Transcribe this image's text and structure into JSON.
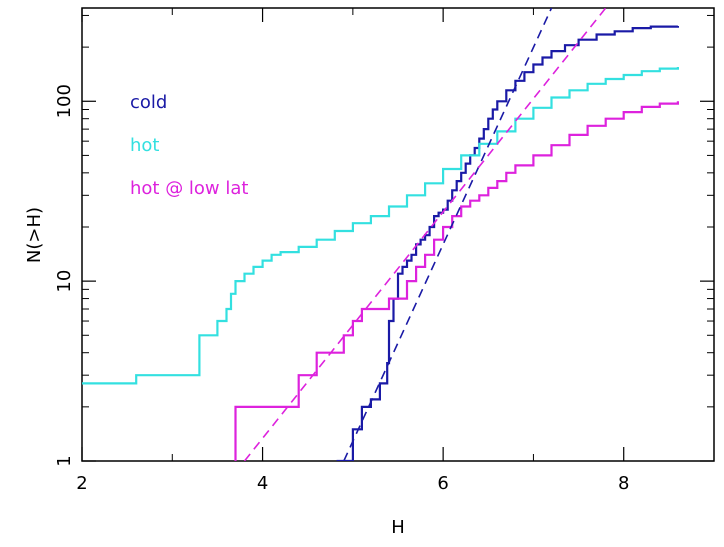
{
  "chart_data": {
    "type": "line",
    "title": "",
    "xlabel": "H",
    "ylabel": "N(>H)",
    "xlim": [
      2,
      9
    ],
    "ylim": [
      1,
      330
    ],
    "y_scale": "log",
    "grid": false,
    "legend_placement": "top-left",
    "x_ticks": [
      {
        "value": 2,
        "label": "2"
      },
      {
        "value": 4,
        "label": "4"
      },
      {
        "value": 6,
        "label": "6"
      },
      {
        "value": 8,
        "label": "8"
      }
    ],
    "y_ticks": [
      {
        "value": 1,
        "label": "1"
      },
      {
        "value": 10,
        "label": "10"
      },
      {
        "value": 100,
        "label": "100"
      }
    ],
    "series": [
      {
        "name": "cold",
        "color": "#1a1aa6",
        "style": "solid",
        "x": [
          4.82,
          5.0,
          5.1,
          5.2,
          5.3,
          5.38,
          5.4,
          5.45,
          5.5,
          5.55,
          5.6,
          5.65,
          5.7,
          5.75,
          5.8,
          5.85,
          5.9,
          5.95,
          6.0,
          6.05,
          6.1,
          6.15,
          6.2,
          6.25,
          6.3,
          6.35,
          6.4,
          6.45,
          6.5,
          6.55,
          6.6,
          6.7,
          6.8,
          6.9,
          7.0,
          7.1,
          7.2,
          7.35,
          7.5,
          7.7,
          7.9,
          8.1,
          8.3,
          8.6
        ],
        "y": [
          1.0,
          1.5,
          2.0,
          2.2,
          2.7,
          3.5,
          6.0,
          8.0,
          11.0,
          12.0,
          13.0,
          14.0,
          16.0,
          17.0,
          18.0,
          20.0,
          23.0,
          24.0,
          25.0,
          28.0,
          32.0,
          36.0,
          40.0,
          45.0,
          50.0,
          55.0,
          62.0,
          70.0,
          80.0,
          90.0,
          100.0,
          115.0,
          130.0,
          145.0,
          160.0,
          175.0,
          190.0,
          205.0,
          220.0,
          235.0,
          245.0,
          255.0,
          260.0,
          262.0
        ]
      },
      {
        "name": "hot",
        "color": "#33e0e0",
        "style": "solid",
        "x": [
          2.0,
          2.6,
          3.3,
          3.3,
          3.5,
          3.6,
          3.65,
          3.7,
          3.8,
          3.9,
          4.0,
          4.1,
          4.2,
          4.4,
          4.6,
          4.8,
          5.0,
          5.2,
          5.4,
          5.6,
          5.8,
          6.0,
          6.2,
          6.4,
          6.6,
          6.8,
          7.0,
          7.2,
          7.4,
          7.6,
          7.8,
          8.0,
          8.2,
          8.4,
          8.6
        ],
        "y": [
          2.7,
          3.0,
          4.0,
          5.0,
          6.0,
          7.0,
          8.5,
          10.0,
          11.0,
          12.0,
          13.0,
          14.0,
          14.5,
          15.5,
          17.0,
          19.0,
          21.0,
          23.0,
          26.0,
          30.0,
          35.0,
          42.0,
          50.0,
          58.0,
          68.0,
          80.0,
          92.0,
          105.0,
          115.0,
          125.0,
          133.0,
          140.0,
          147.0,
          152.0,
          155.0
        ]
      },
      {
        "name": "hot @ low lat",
        "color": "#dd22dd",
        "style": "solid",
        "x": [
          3.7,
          3.7,
          4.4,
          4.6,
          4.9,
          5.0,
          5.1,
          5.4,
          5.6,
          5.7,
          5.8,
          5.9,
          6.0,
          6.1,
          6.2,
          6.3,
          6.4,
          6.5,
          6.6,
          6.7,
          6.8,
          7.0,
          7.2,
          7.4,
          7.6,
          7.8,
          8.0,
          8.2,
          8.4,
          8.6
        ],
        "y": [
          1.0,
          2.0,
          3.0,
          4.0,
          5.0,
          6.0,
          7.0,
          8.0,
          10.0,
          12.0,
          14.0,
          17.0,
          20.0,
          23.0,
          26.0,
          28.0,
          30.0,
          33.0,
          36.0,
          40.0,
          44.0,
          50.0,
          57.0,
          65.0,
          73.0,
          80.0,
          87.0,
          93.0,
          97.0,
          100.0
        ]
      },
      {
        "color": "#1a1aa6",
        "style": "dashed",
        "x": [
          4.9,
          7.2
        ],
        "y": [
          1.0,
          330.0
        ]
      },
      {
        "color": "#dd22dd",
        "style": "dashed",
        "x": [
          3.8,
          7.8
        ],
        "y": [
          1.0,
          330.0
        ]
      }
    ]
  }
}
